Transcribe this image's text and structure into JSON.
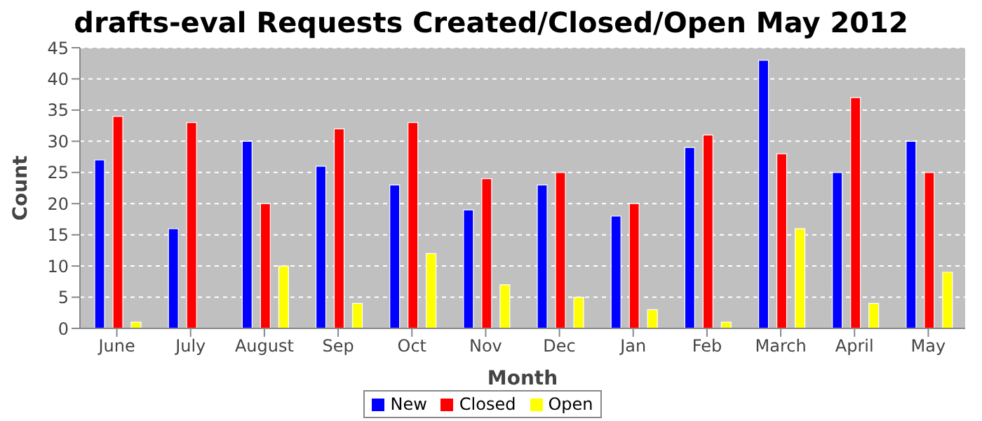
{
  "chart_data": {
    "type": "bar",
    "title": "drafts-eval Requests Created/Closed/Open May 2012",
    "xlabel": "Month",
    "ylabel": "Count",
    "categories": [
      "June",
      "July",
      "August",
      "Sep",
      "Oct",
      "Nov",
      "Dec",
      "Jan",
      "Feb",
      "March",
      "April",
      "May"
    ],
    "series": [
      {
        "name": "New",
        "color": "#0000ff",
        "values": [
          27,
          16,
          30,
          26,
          23,
          19,
          23,
          18,
          29,
          43,
          25,
          30
        ]
      },
      {
        "name": "Closed",
        "color": "#ff0000",
        "values": [
          34,
          33,
          20,
          32,
          33,
          24,
          25,
          20,
          31,
          28,
          37,
          25
        ]
      },
      {
        "name": "Open",
        "color": "#ffff00",
        "values": [
          1,
          0,
          10,
          4,
          12,
          7,
          5,
          3,
          1,
          16,
          4,
          9
        ]
      }
    ],
    "ylim": [
      0,
      45
    ],
    "yticks": [
      0,
      5,
      10,
      15,
      20,
      25,
      30,
      35,
      40,
      45
    ],
    "grid": "y",
    "legend": "bottom"
  }
}
